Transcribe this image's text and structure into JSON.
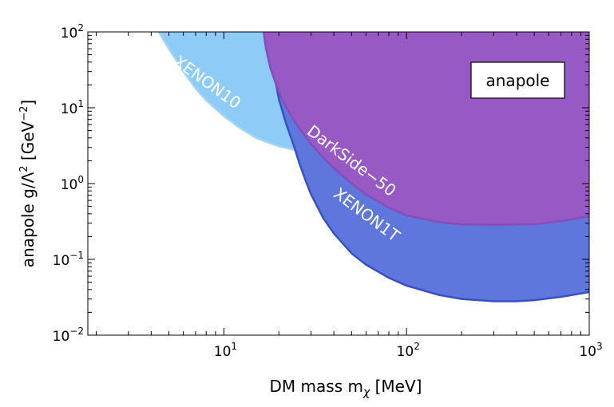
{
  "chart_data": {
    "type": "area",
    "title": "",
    "xlabel": "DM mass m",
    "xlabel_sub": "χ",
    "xlabel_unit": " [MeV]",
    "ylabel": "anapole g/Λ",
    "ylabel_sup": "2",
    "ylabel_unit_pre": " [GeV",
    "ylabel_unit_sup": "−2",
    "ylabel_unit_post": "]",
    "xscale": "log",
    "yscale": "log",
    "xlim": [
      1.8,
      1000
    ],
    "ylim": [
      0.01,
      100
    ],
    "grid": false,
    "annotation_box": "anapole",
    "x_ticks": [
      {
        "value": 10,
        "base": "10",
        "exp": "1"
      },
      {
        "value": 100,
        "base": "10",
        "exp": "2"
      },
      {
        "value": 1000,
        "base": "10",
        "exp": "3"
      }
    ],
    "y_ticks": [
      {
        "value": 0.01,
        "base": "10",
        "exp": "−2"
      },
      {
        "value": 0.1,
        "base": "10",
        "exp": "−1"
      },
      {
        "value": 1,
        "base": "10",
        "exp": "0"
      },
      {
        "value": 10,
        "base": "10",
        "exp": "1"
      },
      {
        "value": 100,
        "base": "10",
        "exp": "2"
      }
    ],
    "series": [
      {
        "name": "XENON10",
        "color": "#8fcbf7",
        "line_color": "#9fd5fa",
        "x": [
          4.4,
          5,
          6,
          7,
          8,
          10,
          12,
          15,
          20,
          25,
          30,
          40,
          50,
          70,
          100,
          150,
          200,
          300,
          500,
          700,
          1000
        ],
        "y": [
          100,
          60,
          30,
          18,
          12.5,
          7.8,
          5.6,
          4.0,
          3.1,
          2.75,
          2.25,
          1.1,
          0.62,
          0.36,
          0.27,
          0.225,
          0.21,
          0.21,
          0.235,
          0.265,
          0.31
        ]
      },
      {
        "name": "XENON1T",
        "color": "#5f77dc",
        "line_color": "#3550c8",
        "x": [
          17,
          18,
          19,
          20,
          22,
          24,
          26,
          28,
          30,
          35,
          40,
          50,
          60,
          80,
          100,
          150,
          200,
          300,
          400,
          500,
          700,
          1000
        ],
        "y": [
          100,
          50,
          25,
          13,
          6,
          3.3,
          1.8,
          1.1,
          0.72,
          0.35,
          0.22,
          0.12,
          0.085,
          0.057,
          0.045,
          0.034,
          0.03,
          0.028,
          0.028,
          0.029,
          0.032,
          0.037
        ]
      },
      {
        "name": "DarkSide−50",
        "color": "#9759c4",
        "line_color": "#8a4ab8",
        "x": [
          16.5,
          17,
          18,
          20,
          22,
          25,
          30,
          35,
          40,
          50,
          60,
          80,
          100,
          150,
          200,
          300,
          500,
          700,
          1000
        ],
        "y": [
          100,
          60,
          33,
          16,
          10,
          6,
          3.3,
          2.2,
          1.6,
          1.0,
          0.72,
          0.48,
          0.38,
          0.31,
          0.29,
          0.285,
          0.29,
          0.32,
          0.37
        ]
      }
    ],
    "region_labels": [
      {
        "text": "XENON10",
        "x": 7.8,
        "y": 19,
        "angle": 36
      },
      {
        "text": "DarkSide−50",
        "x": 48,
        "y": 1.75,
        "angle": 37
      },
      {
        "text": "XENON1T",
        "x": 58,
        "y": 0.34,
        "angle": 37
      }
    ]
  }
}
